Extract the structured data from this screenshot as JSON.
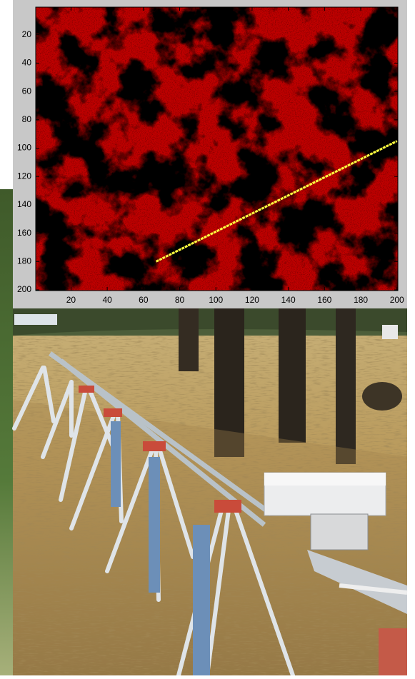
{
  "chart_data": {
    "type": "heatmap",
    "colormap": "hot",
    "y_reversed": true,
    "xlim": [
      0.5,
      200.5
    ],
    "ylim": [
      0.5,
      200.5
    ],
    "xticks": [
      20,
      40,
      60,
      80,
      100,
      120,
      140,
      160,
      180,
      200
    ],
    "yticks": [
      20,
      40,
      60,
      80,
      100,
      120,
      140,
      160,
      180,
      200
    ],
    "line": {
      "x": [
        67,
        200
      ],
      "values": [
        180,
        95
      ],
      "color": "#ffff40"
    }
  }
}
